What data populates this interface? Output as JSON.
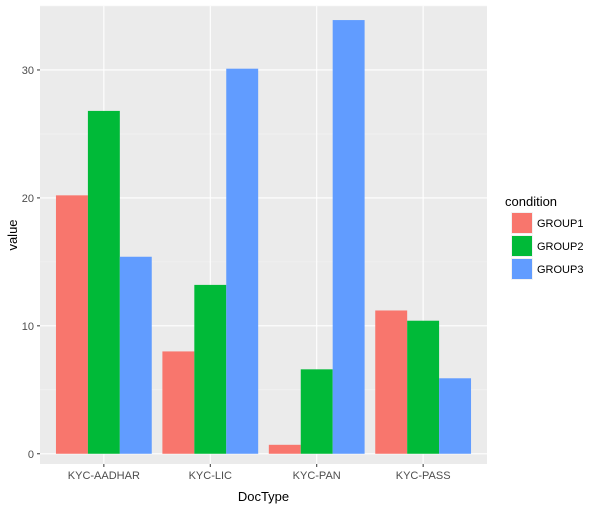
{
  "chart_data": {
    "type": "bar",
    "categories": [
      "KYC-AADHAR",
      "KYC-LIC",
      "KYC-PAN",
      "KYC-PASS"
    ],
    "series": [
      {
        "name": "GROUP1",
        "color": "#F8766D",
        "values": [
          20.2,
          8.0,
          0.7,
          11.2
        ]
      },
      {
        "name": "GROUP2",
        "color": "#00BA38",
        "values": [
          26.8,
          13.2,
          6.6,
          10.4
        ]
      },
      {
        "name": "GROUP3",
        "color": "#619CFF",
        "values": [
          15.4,
          30.1,
          33.9,
          5.9
        ]
      }
    ],
    "xlabel": "DocType",
    "ylabel": "value",
    "ylim": [
      -0.8,
      35.0
    ],
    "yticks": [
      "0",
      "10",
      "20",
      "30"
    ],
    "ytick_values": [
      0,
      10,
      20,
      30
    ],
    "legend_title": "condition",
    "legend_position": "right",
    "grid": true,
    "panel_background": "#EBEBEB",
    "grid_color": "#FFFFFF"
  }
}
